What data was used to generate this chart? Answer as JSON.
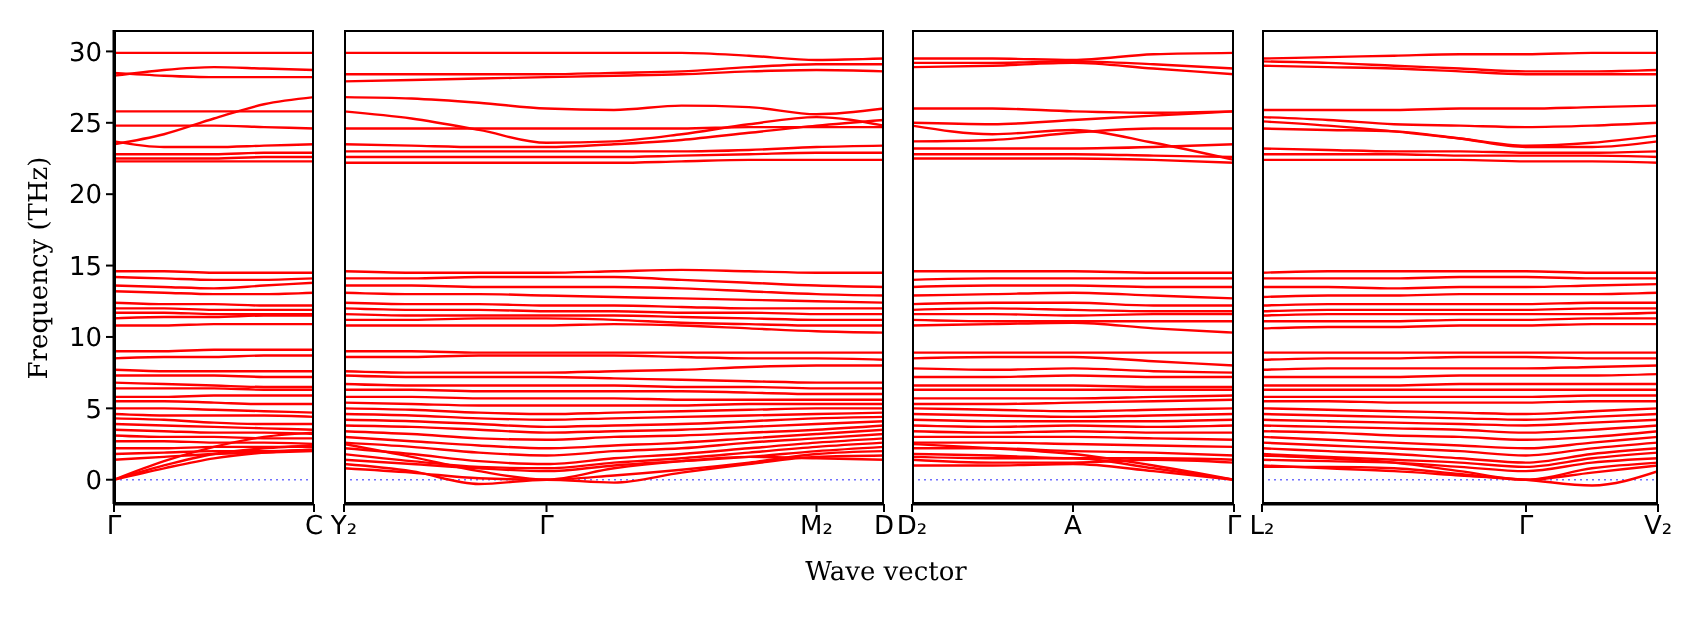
{
  "chart_data": [
    {
      "type": "line",
      "ylabel": "Frequency (THz)",
      "color": "#ff0000",
      "categories": [
        "Γ",
        null,
        null,
        null,
        "C"
      ],
      "ylim": [
        -1.7,
        31.5
      ],
      "yticks": [
        0,
        5,
        10,
        15,
        20,
        25,
        30
      ],
      "ref_lines": [
        {
          "axis": "y",
          "value": 0,
          "color": "#7070ff",
          "line_style": "dotted"
        }
      ],
      "series": [
        {
          "values": [
            29.9,
            29.9,
            29.9,
            29.9,
            29.9
          ]
        },
        {
          "values": [
            28.3,
            28.7,
            28.9,
            28.8,
            28.7
          ]
        },
        {
          "values": [
            28.5,
            28.3,
            28.2,
            28.2,
            28.2
          ]
        },
        {
          "values": [
            25.8,
            25.8,
            25.8,
            25.8,
            25.8
          ]
        },
        {
          "values": [
            24.8,
            24.8,
            24.8,
            24.7,
            24.6
          ]
        },
        {
          "values": [
            23.5,
            24.2,
            25.3,
            26.3,
            26.8
          ]
        },
        {
          "values": [
            23.7,
            23.3,
            23.3,
            23.4,
            23.5
          ]
        },
        {
          "values": [
            22.8,
            22.8,
            22.8,
            22.9,
            22.9
          ]
        },
        {
          "values": [
            22.5,
            22.5,
            22.5,
            22.6,
            22.6
          ]
        },
        {
          "values": [
            22.3,
            22.3,
            22.3,
            22.3,
            22.3
          ]
        },
        {
          "values": [
            14.6,
            14.6,
            14.5,
            14.5,
            14.5
          ]
        },
        {
          "values": [
            14.2,
            14.1,
            14.0,
            14.0,
            14.1
          ]
        },
        {
          "values": [
            13.6,
            13.5,
            13.4,
            13.6,
            13.8
          ]
        },
        {
          "values": [
            13.2,
            13.1,
            13.0,
            13.0,
            13.1
          ]
        },
        {
          "values": [
            12.4,
            12.3,
            12.3,
            12.2,
            12.2
          ]
        },
        {
          "values": [
            12.0,
            12.0,
            11.9,
            11.9,
            11.9
          ]
        },
        {
          "values": [
            11.7,
            11.7,
            11.6,
            11.6,
            11.6
          ]
        },
        {
          "values": [
            11.3,
            11.4,
            11.4,
            11.5,
            11.5
          ]
        },
        {
          "values": [
            10.8,
            10.8,
            10.9,
            10.9,
            10.9
          ]
        },
        {
          "values": [
            9.0,
            9.0,
            9.1,
            9.1,
            9.1
          ]
        },
        {
          "values": [
            8.5,
            8.6,
            8.6,
            8.7,
            8.7
          ]
        },
        {
          "values": [
            7.7,
            7.6,
            7.6,
            7.6,
            7.6
          ]
        },
        {
          "values": [
            7.3,
            7.3,
            7.3,
            7.2,
            7.2
          ]
        },
        {
          "values": [
            6.8,
            6.7,
            6.6,
            6.5,
            6.5
          ]
        },
        {
          "values": [
            6.4,
            6.4,
            6.4,
            6.3,
            6.3
          ]
        },
        {
          "values": [
            5.8,
            5.8,
            5.9,
            5.9,
            5.9
          ]
        },
        {
          "values": [
            5.5,
            5.5,
            5.4,
            5.3,
            5.3
          ]
        },
        {
          "values": [
            5.0,
            5.0,
            4.9,
            4.8,
            4.7
          ]
        },
        {
          "values": [
            4.6,
            4.5,
            4.5,
            4.5,
            4.4
          ]
        },
        {
          "values": [
            4.3,
            4.2,
            4.0,
            3.9,
            3.9
          ]
        },
        {
          "values": [
            3.9,
            3.8,
            3.7,
            3.6,
            3.5
          ]
        },
        {
          "values": [
            3.5,
            3.4,
            3.3,
            3.3,
            3.2
          ]
        },
        {
          "values": [
            3.1,
            3.0,
            3.0,
            2.9,
            2.9
          ]
        },
        {
          "values": [
            2.7,
            2.7,
            2.6,
            2.6,
            2.5
          ]
        },
        {
          "values": [
            2.2,
            2.2,
            2.3,
            2.3,
            2.3
          ]
        },
        {
          "values": [
            1.8,
            1.9,
            2.0,
            2.0,
            2.1
          ]
        },
        {
          "values": [
            1.4,
            1.6,
            1.8,
            1.9,
            2.0
          ]
        },
        {
          "values": [
            0,
            1.0,
            1.8,
            2.2,
            2.4
          ]
        },
        {
          "values": [
            0,
            0.8,
            1.5,
            1.9,
            2.1
          ]
        },
        {
          "values": [
            0,
            1.3,
            2.3,
            3.0,
            3.3
          ]
        }
      ]
    },
    {
      "type": "line",
      "xlabel": "Wave vector",
      "color": "#ff0000",
      "categories": [
        "Y₂",
        null,
        null,
        "Γ",
        null,
        null,
        null,
        "M₂",
        "D"
      ],
      "ylim": [
        -1.7,
        31.5
      ],
      "tick_labels": "x",
      "ref_lines": [
        {
          "axis": "y",
          "value": 0,
          "color": "#7070ff",
          "line_style": "dotted"
        }
      ],
      "series": [
        {
          "values": [
            29.9,
            29.9,
            29.9,
            29.9,
            29.9,
            29.9,
            29.7,
            29.4,
            29.5
          ]
        },
        {
          "values": [
            28.4,
            28.4,
            28.4,
            28.4,
            28.5,
            28.6,
            28.9,
            29.1,
            29.1
          ]
        },
        {
          "values": [
            27.9,
            28.0,
            28.1,
            28.2,
            28.3,
            28.4,
            28.6,
            28.7,
            28.6
          ]
        },
        {
          "values": [
            26.8,
            26.7,
            26.4,
            26.0,
            25.9,
            26.2,
            26.1,
            25.6,
            26.0
          ]
        },
        {
          "values": [
            25.8,
            25.3,
            24.5,
            23.6,
            23.7,
            24.2,
            24.9,
            25.4,
            24.8
          ]
        },
        {
          "values": [
            24.6,
            24.6,
            24.6,
            24.6,
            24.6,
            24.6,
            24.7,
            24.7,
            24.7
          ]
        },
        {
          "values": [
            23.5,
            23.4,
            23.3,
            23.3,
            23.5,
            23.8,
            24.3,
            24.8,
            25.2
          ]
        },
        {
          "values": [
            23.0,
            23.0,
            23.0,
            23.0,
            23.0,
            23.0,
            23.1,
            23.3,
            23.4
          ]
        },
        {
          "values": [
            22.6,
            22.6,
            22.6,
            22.6,
            22.6,
            22.7,
            22.8,
            22.9,
            22.9
          ]
        },
        {
          "values": [
            22.2,
            22.2,
            22.2,
            22.2,
            22.2,
            22.3,
            22.4,
            22.4,
            22.4
          ]
        },
        {
          "values": [
            14.6,
            14.5,
            14.5,
            14.5,
            14.6,
            14.7,
            14.6,
            14.5,
            14.5
          ]
        },
        {
          "values": [
            14.1,
            14.1,
            14.2,
            14.2,
            14.2,
            14.0,
            13.8,
            13.6,
            13.5
          ]
        },
        {
          "values": [
            13.6,
            13.6,
            13.5,
            13.5,
            13.5,
            13.4,
            13.2,
            13.0,
            12.9
          ]
        },
        {
          "values": [
            13.1,
            13.0,
            13.0,
            12.9,
            12.8,
            12.7,
            12.6,
            12.5,
            12.4
          ]
        },
        {
          "values": [
            12.4,
            12.3,
            12.3,
            12.2,
            12.2,
            12.1,
            12.0,
            12.0,
            12.0
          ]
        },
        {
          "values": [
            12.0,
            11.9,
            11.9,
            11.8,
            11.8,
            11.7,
            11.7,
            11.6,
            11.6
          ]
        },
        {
          "values": [
            11.6,
            11.5,
            11.5,
            11.5,
            11.5,
            11.4,
            11.3,
            11.2,
            11.2
          ]
        },
        {
          "values": [
            11.2,
            11.2,
            11.3,
            11.3,
            11.2,
            11.0,
            10.9,
            10.8,
            10.8
          ]
        },
        {
          "values": [
            10.8,
            10.8,
            10.8,
            10.8,
            10.9,
            10.8,
            10.6,
            10.4,
            10.3
          ]
        },
        {
          "values": [
            9.0,
            9.0,
            8.9,
            8.9,
            8.9,
            8.9,
            8.9,
            8.9,
            8.9
          ]
        },
        {
          "values": [
            8.6,
            8.6,
            8.7,
            8.7,
            8.7,
            8.6,
            8.5,
            8.5,
            8.4
          ]
        },
        {
          "values": [
            7.6,
            7.5,
            7.5,
            7.5,
            7.6,
            7.7,
            7.9,
            8.0,
            8.0
          ]
        },
        {
          "values": [
            7.3,
            7.2,
            7.2,
            7.2,
            7.1,
            7.0,
            6.9,
            6.8,
            6.8
          ]
        },
        {
          "values": [
            6.7,
            6.6,
            6.6,
            6.6,
            6.6,
            6.5,
            6.5,
            6.4,
            6.4
          ]
        },
        {
          "values": [
            6.3,
            6.3,
            6.2,
            6.2,
            6.2,
            6.2,
            6.1,
            6.0,
            6.0
          ]
        },
        {
          "values": [
            5.8,
            5.8,
            5.7,
            5.7,
            5.7,
            5.6,
            5.6,
            5.6,
            5.6
          ]
        },
        {
          "values": [
            5.4,
            5.3,
            5.2,
            5.2,
            5.2,
            5.2,
            5.3,
            5.3,
            5.3
          ]
        },
        {
          "values": [
            5.0,
            4.9,
            4.7,
            4.6,
            4.7,
            4.8,
            4.9,
            5.0,
            5.0
          ]
        },
        {
          "values": [
            4.6,
            4.5,
            4.3,
            4.2,
            4.3,
            4.4,
            4.5,
            4.6,
            4.7
          ]
        },
        {
          "values": [
            4.2,
            4.1,
            3.9,
            3.7,
            3.8,
            3.9,
            4.1,
            4.3,
            4.4
          ]
        },
        {
          "values": [
            3.8,
            3.7,
            3.5,
            3.3,
            3.4,
            3.5,
            3.7,
            3.9,
            4.1
          ]
        },
        {
          "values": [
            3.4,
            3.2,
            2.9,
            2.8,
            3.0,
            3.1,
            3.3,
            3.5,
            3.8
          ]
        },
        {
          "values": [
            3.0,
            2.7,
            2.4,
            2.2,
            2.4,
            2.6,
            2.9,
            3.2,
            3.5
          ]
        },
        {
          "values": [
            2.6,
            2.3,
            1.9,
            1.7,
            2.0,
            2.2,
            2.6,
            2.9,
            3.2
          ]
        },
        {
          "values": [
            2.2,
            1.8,
            1.3,
            1.1,
            1.5,
            1.8,
            2.2,
            2.6,
            2.9
          ]
        },
        {
          "values": [
            1.8,
            1.3,
            0.9,
            0.8,
            1.2,
            1.5,
            1.9,
            2.3,
            2.6
          ]
        },
        {
          "values": [
            1.4,
            1.1,
            0.8,
            0.6,
            1.0,
            1.3,
            1.6,
            2.0,
            2.3
          ]
        },
        {
          "values": [
            1.1,
            0.6,
            -0.3,
            0,
            -0.2,
            0.5,
            1.1,
            1.6,
            1.7
          ]
        },
        {
          "values": [
            0.8,
            0.5,
            0.1,
            0,
            0.3,
            0.7,
            1.2,
            1.8,
            2.0
          ]
        },
        {
          "values": [
            2.5,
            1.6,
            0.6,
            0,
            0.8,
            1.3,
            1.6,
            1.5,
            1.4
          ]
        }
      ]
    },
    {
      "type": "line",
      "color": "#ff0000",
      "categories": [
        "D₂",
        null,
        "A",
        null,
        "Γ"
      ],
      "ylim": [
        -1.7,
        31.5
      ],
      "tick_labels": "x",
      "ref_lines": [
        {
          "axis": "y",
          "value": 0,
          "color": "#7070ff",
          "line_style": "dotted"
        }
      ],
      "series": [
        {
          "values": [
            29.5,
            29.5,
            29.4,
            29.8,
            29.9
          ]
        },
        {
          "values": [
            29.2,
            29.2,
            29.3,
            29.1,
            28.8
          ]
        },
        {
          "values": [
            28.9,
            29.0,
            29.2,
            28.8,
            28.4
          ]
        },
        {
          "values": [
            26.0,
            26.0,
            25.8,
            25.7,
            25.8
          ]
        },
        {
          "values": [
            25.0,
            24.9,
            25.2,
            25.5,
            25.8
          ]
        },
        {
          "values": [
            24.8,
            24.2,
            24.5,
            23.6,
            22.4
          ]
        },
        {
          "values": [
            23.7,
            23.8,
            24.3,
            24.6,
            24.6
          ]
        },
        {
          "values": [
            23.2,
            23.2,
            23.2,
            23.3,
            23.5
          ]
        },
        {
          "values": [
            22.8,
            22.8,
            22.8,
            22.7,
            22.6
          ]
        },
        {
          "values": [
            22.5,
            22.5,
            22.5,
            22.4,
            22.2
          ]
        },
        {
          "values": [
            14.6,
            14.6,
            14.6,
            14.5,
            14.5
          ]
        },
        {
          "values": [
            14.0,
            14.1,
            14.1,
            14.1,
            14.1
          ]
        },
        {
          "values": [
            13.5,
            13.6,
            13.6,
            13.5,
            13.5
          ]
        },
        {
          "values": [
            12.9,
            13.0,
            13.1,
            12.9,
            12.7
          ]
        },
        {
          "values": [
            12.3,
            12.4,
            12.4,
            12.2,
            12.2
          ]
        },
        {
          "values": [
            11.9,
            12.0,
            11.9,
            11.8,
            11.8
          ]
        },
        {
          "values": [
            11.6,
            11.6,
            11.5,
            11.6,
            11.6
          ]
        },
        {
          "values": [
            11.2,
            11.1,
            11.1,
            11.1,
            11.1
          ]
        },
        {
          "values": [
            10.8,
            10.9,
            11.0,
            10.6,
            10.3
          ]
        },
        {
          "values": [
            8.9,
            8.9,
            8.9,
            8.9,
            8.9
          ]
        },
        {
          "values": [
            8.5,
            8.6,
            8.6,
            8.3,
            8.0
          ]
        },
        {
          "values": [
            7.8,
            7.7,
            7.8,
            7.6,
            7.5
          ]
        },
        {
          "values": [
            7.2,
            7.2,
            7.3,
            7.2,
            7.2
          ]
        },
        {
          "values": [
            6.6,
            6.6,
            6.6,
            6.5,
            6.5
          ]
        },
        {
          "values": [
            6.3,
            6.3,
            6.3,
            6.3,
            6.3
          ]
        },
        {
          "values": [
            5.7,
            5.7,
            5.7,
            5.8,
            5.9
          ]
        },
        {
          "values": [
            5.3,
            5.3,
            5.4,
            5.5,
            5.6
          ]
        },
        {
          "values": [
            5.0,
            4.9,
            4.8,
            4.9,
            5.0
          ]
        },
        {
          "values": [
            4.6,
            4.5,
            4.4,
            4.5,
            4.6
          ]
        },
        {
          "values": [
            4.2,
            4.1,
            4.1,
            4.1,
            4.2
          ]
        },
        {
          "values": [
            3.8,
            3.7,
            3.8,
            3.7,
            3.8
          ]
        },
        {
          "values": [
            3.4,
            3.3,
            3.4,
            3.3,
            3.3
          ]
        },
        {
          "values": [
            3.0,
            3.0,
            3.0,
            2.9,
            2.8
          ]
        },
        {
          "values": [
            2.6,
            2.6,
            2.5,
            2.4,
            2.3
          ]
        },
        {
          "values": [
            2.2,
            2.2,
            2.0,
            1.9,
            1.7
          ]
        },
        {
          "values": [
            1.8,
            1.7,
            1.5,
            1.5,
            1.4
          ]
        },
        {
          "values": [
            1.4,
            1.2,
            1.2,
            1.4,
            1.2
          ]
        },
        {
          "values": [
            1.6,
            1.5,
            1.5,
            0.8,
            0
          ]
        },
        {
          "values": [
            1.0,
            1.0,
            1.1,
            0.6,
            0
          ]
        },
        {
          "values": [
            2.5,
            2.2,
            1.8,
            1.0,
            0
          ]
        }
      ]
    },
    {
      "type": "line",
      "color": "#ff0000",
      "categories": [
        "L₂",
        null,
        null,
        null,
        "Γ",
        null,
        "V₂"
      ],
      "ylim": [
        -1.7,
        31.5
      ],
      "tick_labels": "x",
      "ref_lines": [
        {
          "axis": "y",
          "value": 0,
          "color": "#7070ff",
          "line_style": "dotted"
        }
      ],
      "series": [
        {
          "values": [
            29.5,
            29.6,
            29.7,
            29.8,
            29.8,
            29.9,
            29.9
          ]
        },
        {
          "values": [
            29.3,
            29.2,
            29.0,
            28.8,
            28.6,
            28.6,
            28.7
          ]
        },
        {
          "values": [
            29.0,
            28.9,
            28.8,
            28.6,
            28.4,
            28.4,
            28.4
          ]
        },
        {
          "values": [
            25.9,
            25.9,
            25.9,
            26.0,
            26.0,
            26.1,
            26.2
          ]
        },
        {
          "values": [
            25.4,
            25.2,
            24.9,
            24.8,
            24.7,
            24.8,
            25.0
          ]
        },
        {
          "values": [
            25.1,
            24.8,
            24.4,
            23.9,
            23.4,
            23.6,
            24.1
          ]
        },
        {
          "values": [
            24.6,
            24.5,
            24.4,
            23.9,
            23.3,
            23.3,
            23.7
          ]
        },
        {
          "values": [
            23.2,
            23.1,
            23.0,
            23.0,
            22.9,
            22.9,
            23.0
          ]
        },
        {
          "values": [
            22.8,
            22.8,
            22.8,
            22.7,
            22.7,
            22.7,
            22.6
          ]
        },
        {
          "values": [
            22.4,
            22.4,
            22.4,
            22.4,
            22.3,
            22.3,
            22.2
          ]
        },
        {
          "values": [
            14.5,
            14.6,
            14.6,
            14.6,
            14.6,
            14.5,
            14.5
          ]
        },
        {
          "values": [
            14.1,
            14.1,
            14.1,
            14.2,
            14.2,
            14.1,
            14.1
          ]
        },
        {
          "values": [
            13.5,
            13.5,
            13.4,
            13.5,
            13.5,
            13.6,
            13.7
          ]
        },
        {
          "values": [
            12.8,
            12.9,
            12.9,
            13.0,
            13.0,
            13.0,
            13.1
          ]
        },
        {
          "values": [
            12.2,
            12.3,
            12.3,
            12.3,
            12.3,
            12.4,
            12.4
          ]
        },
        {
          "values": [
            11.8,
            11.9,
            11.9,
            11.9,
            11.9,
            12.0,
            12.0
          ]
        },
        {
          "values": [
            11.5,
            11.6,
            11.6,
            11.6,
            11.6,
            11.6,
            11.7
          ]
        },
        {
          "values": [
            11.1,
            11.1,
            11.1,
            11.2,
            11.2,
            11.3,
            11.3
          ]
        },
        {
          "values": [
            10.6,
            10.7,
            10.7,
            10.8,
            10.8,
            10.9,
            10.9
          ]
        },
        {
          "values": [
            8.9,
            8.9,
            8.9,
            8.9,
            8.9,
            8.9,
            8.9
          ]
        },
        {
          "values": [
            8.4,
            8.5,
            8.5,
            8.6,
            8.6,
            8.5,
            8.5
          ]
        },
        {
          "values": [
            7.7,
            7.8,
            7.8,
            7.8,
            7.8,
            7.9,
            8.0
          ]
        },
        {
          "values": [
            7.2,
            7.2,
            7.2,
            7.3,
            7.3,
            7.3,
            7.4
          ]
        },
        {
          "values": [
            6.6,
            6.6,
            6.6,
            6.7,
            6.7,
            6.7,
            6.7
          ]
        },
        {
          "values": [
            6.3,
            6.3,
            6.3,
            6.3,
            6.3,
            6.3,
            6.3
          ]
        },
        {
          "values": [
            5.8,
            5.8,
            5.8,
            5.8,
            5.8,
            5.9,
            5.9
          ]
        },
        {
          "values": [
            5.5,
            5.5,
            5.4,
            5.4,
            5.4,
            5.5,
            5.5
          ]
        },
        {
          "values": [
            5.0,
            4.9,
            4.8,
            4.7,
            4.6,
            4.8,
            5.0
          ]
        },
        {
          "values": [
            4.6,
            4.5,
            4.4,
            4.3,
            4.2,
            4.4,
            4.6
          ]
        },
        {
          "values": [
            4.2,
            4.1,
            4.0,
            3.9,
            3.8,
            4.0,
            4.2
          ]
        },
        {
          "values": [
            3.8,
            3.7,
            3.6,
            3.5,
            3.3,
            3.5,
            3.8
          ]
        },
        {
          "values": [
            3.4,
            3.3,
            3.1,
            3.0,
            2.8,
            3.0,
            3.4
          ]
        },
        {
          "values": [
            3.0,
            2.8,
            2.6,
            2.4,
            2.2,
            2.6,
            3.0
          ]
        },
        {
          "values": [
            2.6,
            2.4,
            2.2,
            2.0,
            1.7,
            2.2,
            2.6
          ]
        },
        {
          "values": [
            2.2,
            2.0,
            1.8,
            1.5,
            1.2,
            1.8,
            2.2
          ]
        },
        {
          "values": [
            1.8,
            1.6,
            1.4,
            1.2,
            0.9,
            1.5,
            1.9
          ]
        },
        {
          "values": [
            1.4,
            1.3,
            1.2,
            0.9,
            0.6,
            1.2,
            1.5
          ]
        },
        {
          "values": [
            1.0,
            0.8,
            0.6,
            0.3,
            0,
            -0.4,
            0.6
          ]
        },
        {
          "values": [
            0.9,
            0.9,
            0.8,
            0.4,
            0,
            0.5,
            1.0
          ]
        },
        {
          "values": [
            1.7,
            1.5,
            1.2,
            0.6,
            0,
            0.8,
            1.2
          ]
        }
      ]
    }
  ]
}
